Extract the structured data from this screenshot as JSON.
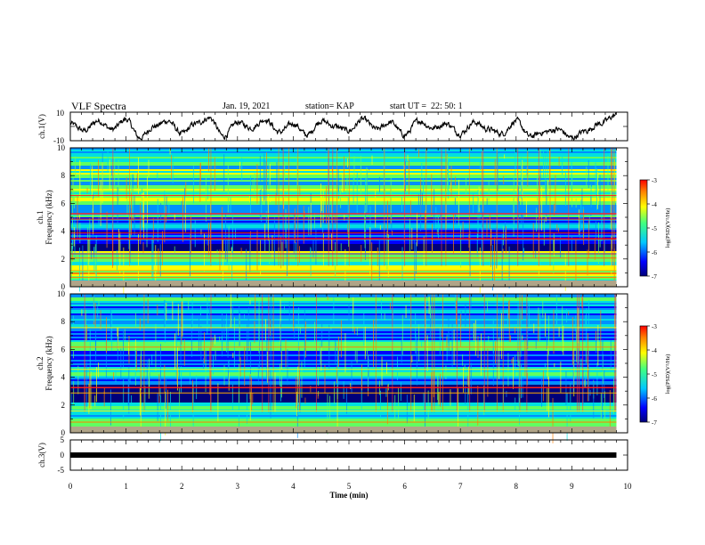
{
  "header": {
    "title": "VLF Spectra",
    "date": "Jan. 19, 2021",
    "station": "station= KAP",
    "start": "start UT =  22: 50: 1"
  },
  "chart_data": [
    {
      "type": "line",
      "panel": "ch1 waveform",
      "ylabel": "ch.1(V)",
      "ylim": [
        -10,
        10
      ],
      "yticks": [
        "10",
        "-10"
      ],
      "x_min": [
        0,
        0.25,
        0.5,
        0.75,
        1,
        1.25,
        1.5,
        1.75,
        2,
        2.25,
        2.5,
        2.75,
        3,
        3.25,
        3.5,
        3.75,
        4,
        4.25,
        4.5,
        4.75,
        5,
        5.25,
        5.5,
        5.75,
        6,
        6.25,
        6.5,
        6.75,
        7,
        7.25,
        7.5,
        7.75,
        8,
        8.25,
        8.5,
        8.75,
        9,
        9.25,
        9.5,
        9.8
      ],
      "y_v": [
        2,
        -3,
        4,
        -2,
        5,
        -8,
        0,
        4,
        -5,
        2,
        6,
        -7,
        3,
        -1,
        5,
        -4,
        2,
        -6,
        4,
        0,
        -3,
        5,
        -2,
        3,
        -6,
        4,
        -1,
        2,
        -5,
        3,
        -2,
        -5,
        4,
        -7,
        -4,
        -2,
        -8,
        -3,
        2,
        8
      ],
      "line_color": "#000000"
    },
    {
      "type": "heatmap",
      "panel": "ch1 spectrogram",
      "ylabel": "ch.1 Frequency (kHz)",
      "ylim": [
        0,
        10
      ],
      "yticks": [
        "0",
        "2",
        "4",
        "6",
        "8",
        "10"
      ],
      "colorbar": {
        "label": "log(PSD)(V²/Hz)",
        "range": [
          -7,
          -3
        ],
        "ticks": [
          "-3",
          "-4",
          "-5",
          "-6",
          "-7"
        ]
      }
    },
    {
      "type": "heatmap",
      "panel": "ch2 spectrogram",
      "ylabel": "ch.2 Frequency (kHz)",
      "ylim": [
        0,
        10
      ],
      "yticks": [
        "0",
        "2",
        "4",
        "6",
        "8",
        "10"
      ],
      "colorbar": {
        "label": "log(PSD)(V²/Hz)",
        "range": [
          -7,
          -3
        ],
        "ticks": [
          "-3",
          "-4",
          "-5",
          "-6",
          "-7"
        ]
      }
    },
    {
      "type": "line",
      "panel": "ch3 waveform",
      "ylabel": "ch.3(V)",
      "ylim": [
        -5,
        5
      ],
      "yticks": [
        "5",
        "0",
        "-5"
      ],
      "x_min": [
        0,
        9.8
      ],
      "y_v": [
        0,
        0
      ],
      "line_color": "#000000"
    }
  ],
  "xaxis": {
    "label": "Time (min)",
    "range": [
      0,
      10
    ],
    "ticks": [
      "0",
      "1",
      "2",
      "3",
      "4",
      "5",
      "6",
      "7",
      "8",
      "9",
      "10"
    ]
  },
  "colors": {
    "spectral": [
      "#00007a",
      "#0000ff",
      "#0090ff",
      "#00e0e0",
      "#60ff60",
      "#ffff00",
      "#ff8000",
      "#ff0000"
    ]
  }
}
